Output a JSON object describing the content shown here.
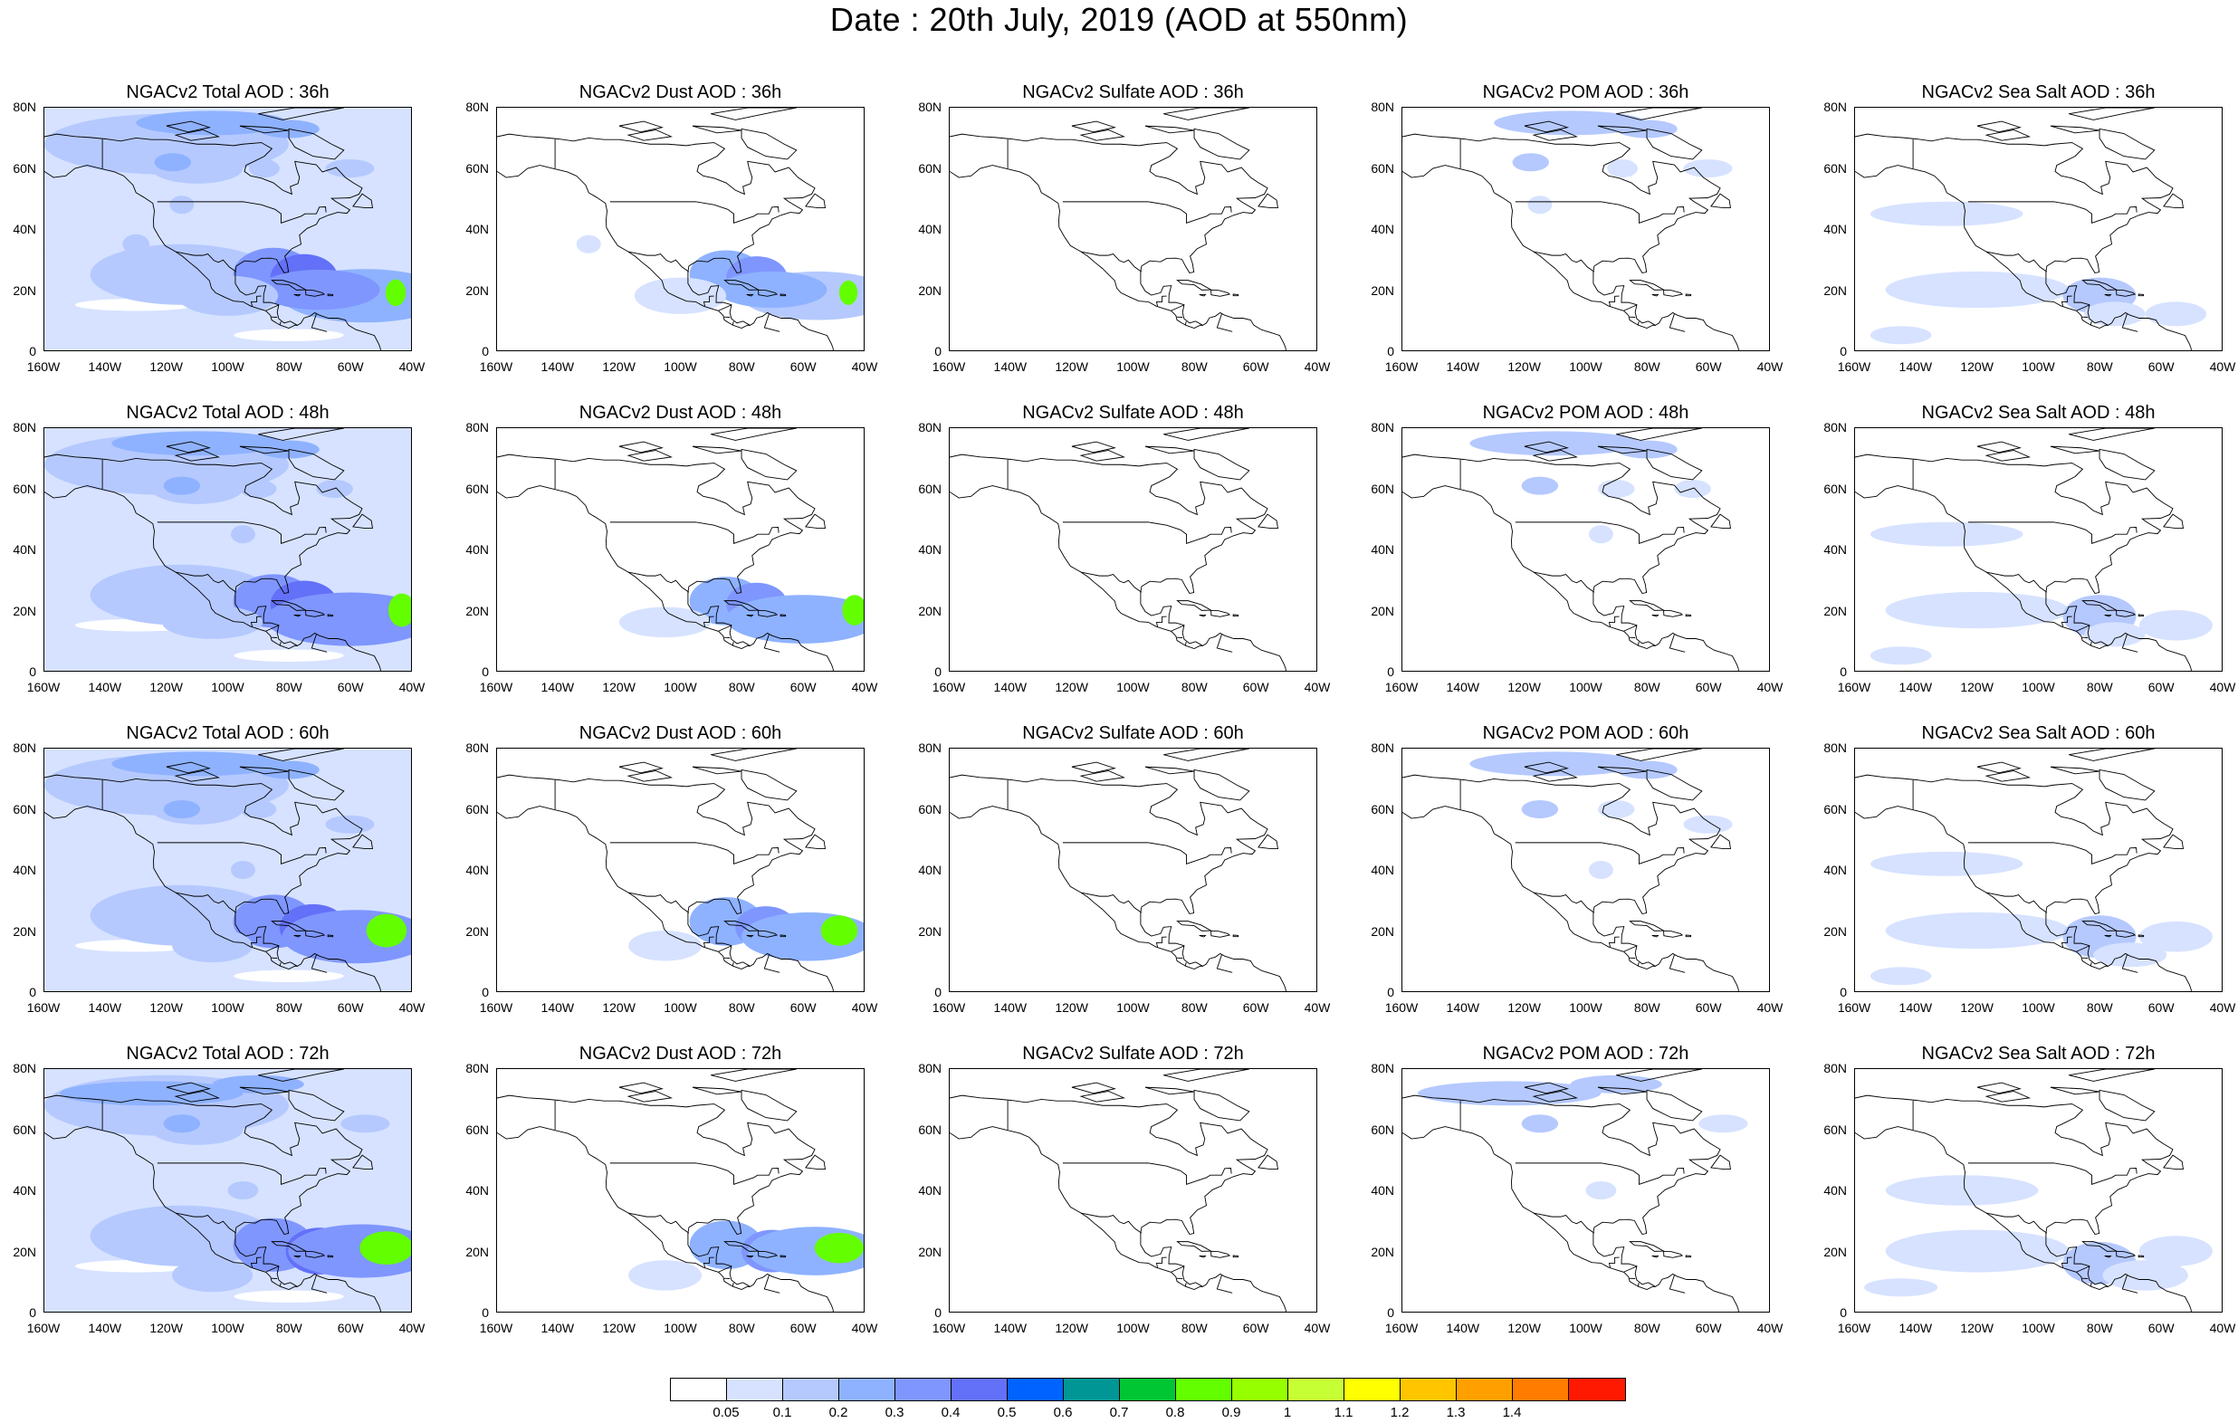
{
  "main_title": "Date : 20th July, 2019 (AOD at 550nm)",
  "y_tick_labels": [
    "80N",
    "60N",
    "40N",
    "20N",
    "0"
  ],
  "x_tick_labels": [
    "160W",
    "140W",
    "120W",
    "100W",
    "80W",
    "60W",
    "40W"
  ],
  "colorbar": {
    "colors": [
      "#ffffff",
      "#d6e2ff",
      "#b5c9ff",
      "#8eb2ff",
      "#7f96ff",
      "#6370f8",
      "#0063ff",
      "#009696",
      "#00c633",
      "#63ff00",
      "#96ff00",
      "#c6ff33",
      "#ffff00",
      "#ffc600",
      "#ffa000",
      "#ff7c00",
      "#ff1900"
    ],
    "labels": [
      "0.05",
      "0.1",
      "0.2",
      "0.3",
      "0.4",
      "0.5",
      "0.6",
      "0.7",
      "0.8",
      "0.9",
      "1",
      "1.1",
      "1.2",
      "1.3",
      "1.4"
    ]
  },
  "panel_titles": [
    [
      "NGACv2 Total AOD : 36h",
      "NGACv2 Dust AOD : 36h",
      "NGACv2 Sulfate AOD : 36h",
      "NGACv2 POM AOD : 36h",
      "NGACv2 Sea Salt AOD : 36h"
    ],
    [
      "NGACv2 Total AOD : 48h",
      "NGACv2 Dust AOD : 48h",
      "NGACv2 Sulfate AOD : 48h",
      "NGACv2 POM AOD : 48h",
      "NGACv2 Sea Salt AOD : 48h"
    ],
    [
      "NGACv2 Total AOD : 60h",
      "NGACv2 Dust AOD : 60h",
      "NGACv2 Sulfate AOD : 60h",
      "NGACv2 POM AOD : 60h",
      "NGACv2 Sea Salt AOD : 60h"
    ],
    [
      "NGACv2 Total AOD : 72h",
      "NGACv2 Dust AOD : 72h",
      "NGACv2 Sulfate AOD : 72h",
      "NGACv2 POM AOD : 72h",
      "NGACv2 Sea Salt  AOD : 72h"
    ]
  ],
  "species": [
    "total",
    "dust",
    "sulfate",
    "pom",
    "seasalt"
  ]
}
